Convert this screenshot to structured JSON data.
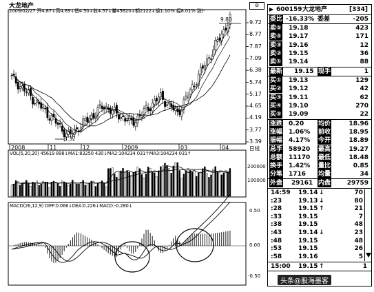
{
  "header": {
    "stock_name": "大龙地产",
    "info_line": "2009/02/27 开4.87↓高4.89↓低4.50↓收4.57↓量45620↓额2122↓换1.10% 幅8.01% 涨(-"
  },
  "price_axis": [
    "9.72",
    "8.77",
    "7.87",
    "7.09",
    "6.38",
    "5.74",
    "5.17",
    "4.65",
    "4.19",
    "3.77",
    "3.39"
  ],
  "price_callouts": {
    "high": "9.80",
    "low": "3.32"
  },
  "date_axis": [
    "2008",
    "11",
    "12",
    "2009",
    "03",
    "04"
  ],
  "date_axis_end": "日线",
  "volume": {
    "label": "VOL(5,20,20) 45619 898↓MA1:83250 430↓MA2:104234 031↑MA3:104234 031↑",
    "axis": [
      "200000",
      "100000"
    ]
  },
  "macd": {
    "label": "MACD(26,12,9) DIFF:0.066↓DEA:0.226↓MACD:-0.280↓",
    "axis": [
      "0.50",
      "0.00",
      "-0.50"
    ]
  },
  "panel_icons": {
    "settings": "gear-icon",
    "scroll": "scroll-arrow-icon"
  },
  "quote": {
    "code": "600159",
    "name": "大龙地产",
    "suffix": "[334]",
    "weibi_label": "委比",
    "weibi_val": "-16.33%",
    "weicha_label": "委差",
    "weicha_val": "-205",
    "sells": [
      {
        "label": "卖⑤",
        "price": "19.18",
        "vol": "423"
      },
      {
        "label": "卖④",
        "price": "19.17",
        "vol": "171"
      },
      {
        "label": "卖③",
        "price": "19.16",
        "vol": "12"
      },
      {
        "label": "卖②",
        "price": "19.15",
        "vol": "36"
      },
      {
        "label": "卖①",
        "price": "19.14",
        "vol": "88"
      }
    ],
    "latest_label": "最新",
    "latest_val": "19.15",
    "xianshou_label": "现手",
    "xianshou_val": "1",
    "buys": [
      {
        "label": "买①",
        "price": "19.13",
        "vol": "129"
      },
      {
        "label": "买②",
        "price": "19.12",
        "vol": "42"
      },
      {
        "label": "买③",
        "price": "19.11",
        "vol": "62"
      },
      {
        "label": "买④",
        "price": "19.10",
        "vol": "270"
      },
      {
        "label": "买⑤",
        "price": "19.09",
        "vol": "22"
      }
    ],
    "stats": [
      {
        "l1": "涨跌",
        "v1": "0.20",
        "l2": "均价",
        "v2": "18.96"
      },
      {
        "l1": "涨幅",
        "v1": "1.06%",
        "l2": "前收",
        "v2": "18.95"
      },
      {
        "l1": "振幅",
        "v1": "4.17%",
        "l2": "今开",
        "v2": "18.89"
      },
      {
        "l1": "总手",
        "v1": "58920",
        "l2": "最高",
        "v2": "19.27"
      },
      {
        "l1": "总额",
        "v1": "11170",
        "l2": "最低",
        "v2": "18.48"
      },
      {
        "l1": "换手",
        "v1": "1.42%",
        "l2": "量比",
        "v2": "0.85"
      },
      {
        "l1": "分笔",
        "v1": "1716",
        "l2": "均量",
        "v2": "34"
      }
    ],
    "outer_label": "外盘",
    "outer_val": "29161",
    "inner_label": "内盘",
    "inner_val": "29759",
    "ticks": [
      {
        "time": "14:59",
        "price": "19.14",
        "arrow": "↓",
        "vol": "70"
      },
      {
        "time": ":23",
        "price": "19.13",
        "arrow": "↓",
        "vol": "80"
      },
      {
        "time": ":28",
        "price": "19.15",
        "arrow": "↑",
        "vol": "21"
      },
      {
        "time": ":33",
        "price": "19.15",
        "arrow": "",
        "vol": "7"
      },
      {
        "time": ":38",
        "price": "19.15",
        "arrow": "",
        "vol": "48"
      },
      {
        "time": ":43",
        "price": "19.14",
        "arrow": "↓",
        "vol": "23"
      },
      {
        "time": ":48",
        "price": "19.15",
        "arrow": "",
        "vol": "48"
      },
      {
        "time": ":53",
        "price": "19.15",
        "arrow": "",
        "vol": "26"
      },
      {
        "time": ":58",
        "price": "19.16",
        "arrow": "",
        "vol": "5"
      }
    ],
    "last_tick": {
      "time": "15:00",
      "price": "19.15",
      "arrow": "↑",
      "vol": "1"
    },
    "watermark": "头条@股海墨客"
  }
}
